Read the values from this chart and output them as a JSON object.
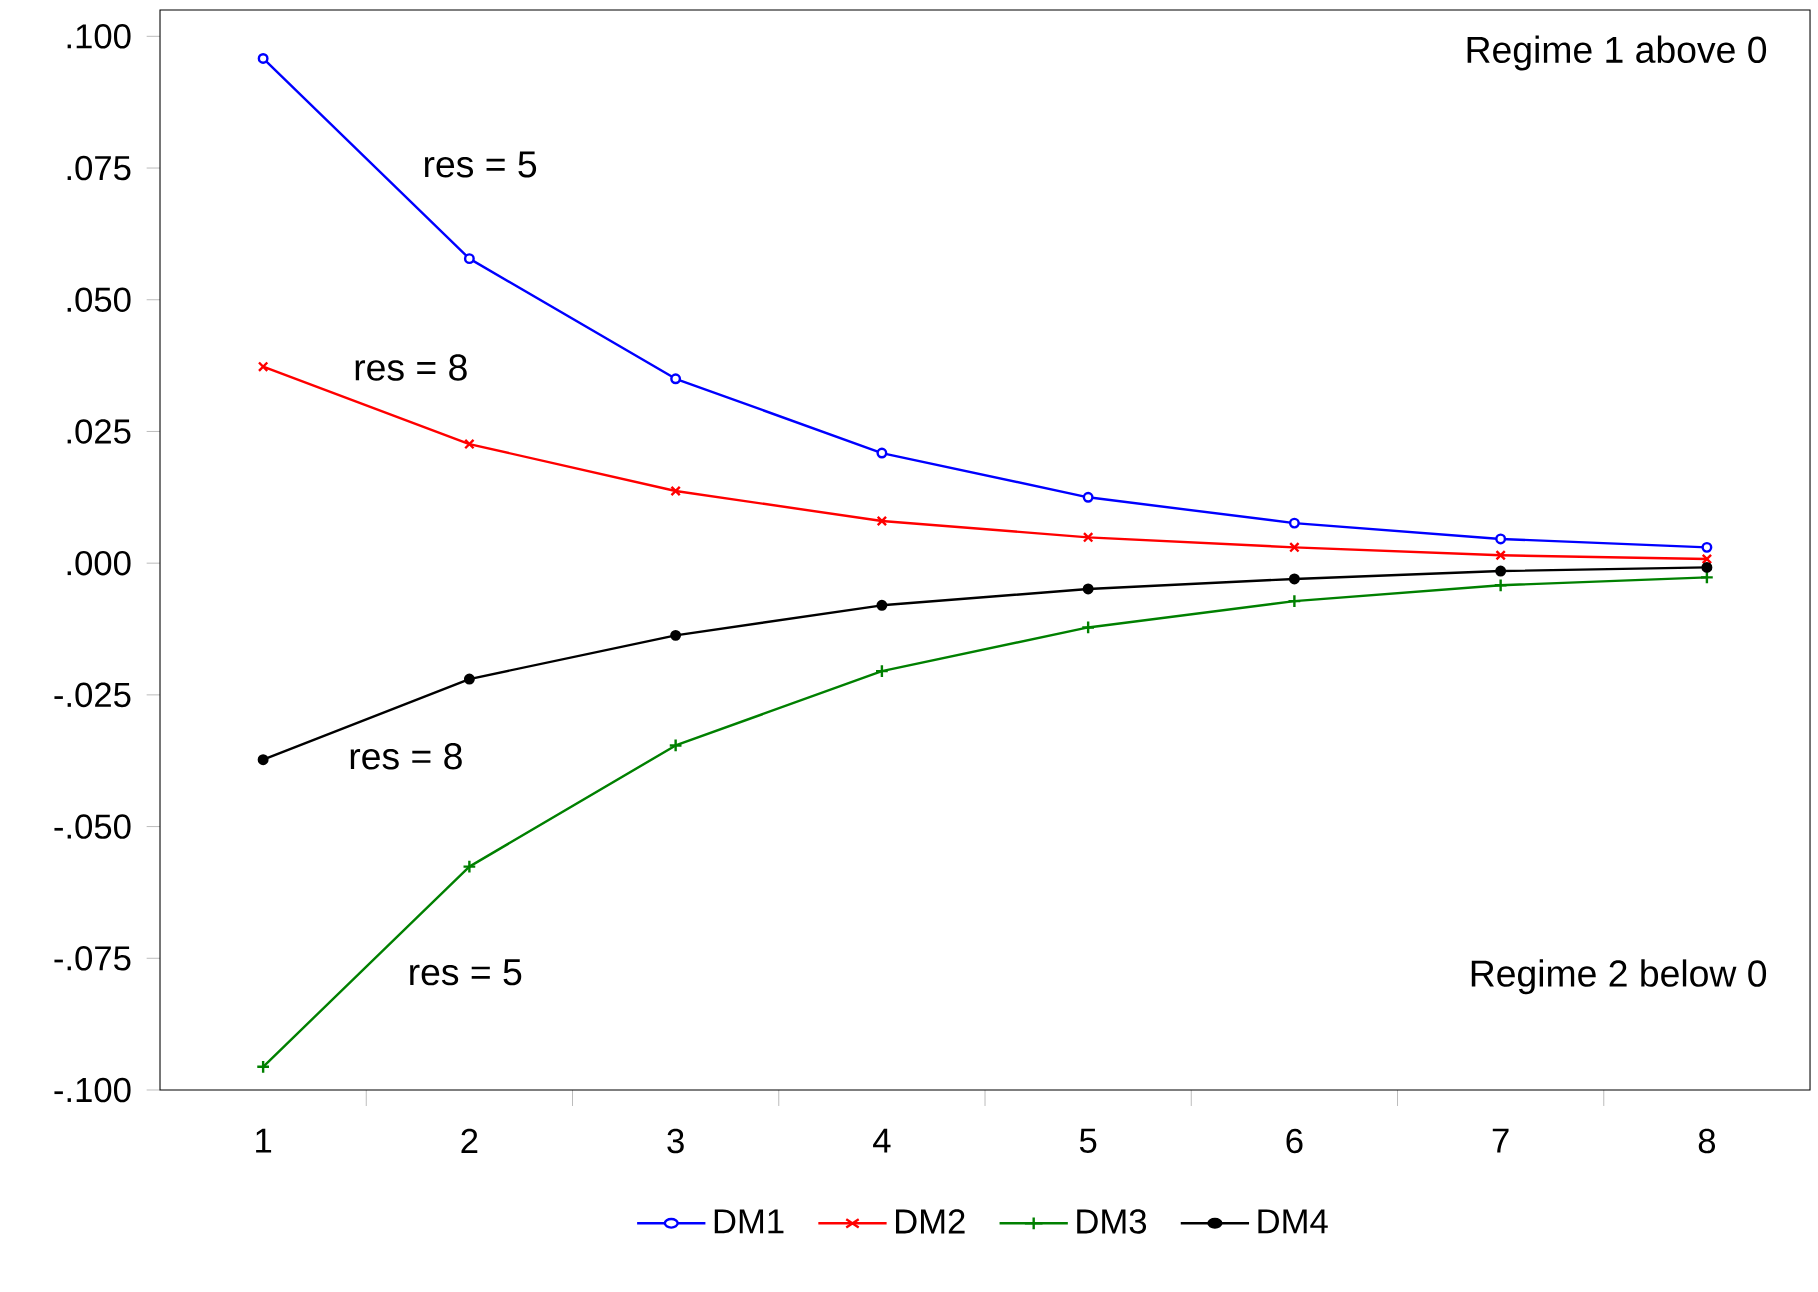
{
  "chart_data": {
    "type": "line",
    "categories": [
      "1",
      "2",
      "3",
      "4",
      "5",
      "6",
      "7",
      "8"
    ],
    "series": [
      {
        "name": "DM1",
        "color": "#0000ff",
        "marker": "circle",
        "values": [
          0.0958,
          0.0578,
          0.035,
          0.0209,
          0.0125,
          0.0076,
          0.0046,
          0.003
        ]
      },
      {
        "name": "DM2",
        "color": "#ff0000",
        "marker": "cross",
        "values": [
          0.0373,
          0.0226,
          0.0137,
          0.008,
          0.0049,
          0.003,
          0.0015,
          0.0008
        ]
      },
      {
        "name": "DM3",
        "color": "#008000",
        "marker": "plus",
        "values": [
          -0.0956,
          -0.0576,
          -0.0346,
          -0.0205,
          -0.0122,
          -0.0072,
          -0.0042,
          -0.0027
        ]
      },
      {
        "name": "DM4",
        "color": "#000000",
        "marker": "dot",
        "values": [
          -0.0373,
          -0.022,
          -0.0137,
          -0.008,
          -0.0049,
          -0.003,
          -0.0015,
          -0.0008
        ]
      }
    ],
    "ylim": [
      -0.1,
      0.105
    ],
    "yticks": [
      {
        "value": -0.1,
        "label": "-.100"
      },
      {
        "value": -0.075,
        "label": "-.075"
      },
      {
        "value": -0.05,
        "label": "-.050"
      },
      {
        "value": -0.025,
        "label": "-.025"
      },
      {
        "value": 0,
        "label": ".000"
      },
      {
        "value": 0.025,
        "label": ".025"
      },
      {
        "value": 0.05,
        "label": ".050"
      },
      {
        "value": 0.075,
        "label": ".075"
      },
      {
        "value": 0.1,
        "label": ".100"
      }
    ],
    "annotations": [
      "Regime 1 above 0",
      "Regime 2 below 0",
      "res = 5",
      "res = 8",
      "res = 8",
      "res = 5"
    ],
    "grid": false,
    "legend": "bottom",
    "line_style": "solid"
  }
}
